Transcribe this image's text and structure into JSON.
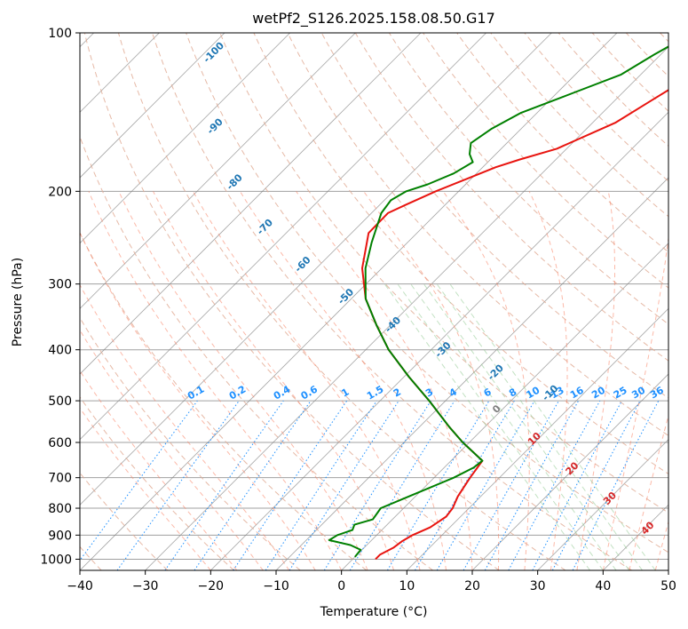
{
  "chart_data": {
    "type": "line",
    "subtype": "skew-t log-p",
    "title": "wetPf2_S126.2025.158.08.50.G17",
    "xlabel": "Temperature (°C)",
    "ylabel": "Pressure (hPa)",
    "xlim": [
      -40,
      50
    ],
    "ylim": [
      1050,
      100
    ],
    "y_scale": "log",
    "x_ticks": [
      "−40",
      "−30",
      "−20",
      "−10",
      "0",
      "10",
      "20",
      "30",
      "40",
      "50"
    ],
    "y_ticks": [
      "100",
      "200",
      "300",
      "400",
      "500",
      "600",
      "700",
      "800",
      "900",
      "1000"
    ],
    "grid": true,
    "series": [
      {
        "color": "#e8140f",
        "points": [
          [
            -19.1,
            100
          ],
          [
            -20.5,
            108
          ],
          [
            -21.5,
            116
          ],
          [
            -22.8,
            125
          ],
          [
            -24.5,
            135
          ],
          [
            -26.5,
            148
          ],
          [
            -31.5,
            166
          ],
          [
            -35.5,
            174
          ],
          [
            -38.0,
            180
          ],
          [
            -40.8,
            190
          ],
          [
            -43.5,
            200
          ],
          [
            -46.0,
            212
          ],
          [
            -47.5,
            220
          ],
          [
            -47.4,
            240
          ],
          [
            -43.0,
            280
          ],
          [
            -37.8,
            320
          ],
          [
            -32.0,
            360
          ],
          [
            -26.5,
            400
          ],
          [
            -19.3,
            450
          ],
          [
            -12.5,
            500
          ],
          [
            -5.5,
            560
          ],
          [
            -1.0,
            600
          ],
          [
            4.8,
            650
          ],
          [
            5.5,
            700
          ],
          [
            6.5,
            760
          ],
          [
            7.5,
            800
          ],
          [
            7.8,
            830
          ],
          [
            7.0,
            870
          ],
          [
            5.5,
            900
          ],
          [
            4.8,
            925
          ],
          [
            4.5,
            950
          ],
          [
            3.5,
            980
          ],
          [
            3.5,
            1000
          ]
        ]
      },
      {
        "color": "#008000",
        "points": [
          [
            -28.4,
            100
          ],
          [
            -31.0,
            110
          ],
          [
            -33.0,
            120
          ],
          [
            -37.5,
            130
          ],
          [
            -42.5,
            142
          ],
          [
            -44.5,
            152
          ],
          [
            -45.5,
            162
          ],
          [
            -44.0,
            170
          ],
          [
            -42.3,
            176
          ],
          [
            -43.5,
            185
          ],
          [
            -45.8,
            194
          ],
          [
            -48.0,
            200
          ],
          [
            -49.0,
            208
          ],
          [
            -48.5,
            220
          ],
          [
            -45.5,
            250
          ],
          [
            -42.5,
            280
          ],
          [
            -37.8,
            320
          ],
          [
            -32.0,
            360
          ],
          [
            -26.5,
            400
          ],
          [
            -19.3,
            450
          ],
          [
            -12.5,
            500
          ],
          [
            -5.5,
            560
          ],
          [
            -1.0,
            600
          ],
          [
            4.8,
            650
          ],
          [
            4.5,
            670
          ],
          [
            3.0,
            700
          ],
          [
            -1.0,
            760
          ],
          [
            -3.5,
            800
          ],
          [
            -3.0,
            840
          ],
          [
            -5.0,
            860
          ],
          [
            -4.5,
            880
          ],
          [
            -6.0,
            900
          ],
          [
            -6.5,
            920
          ],
          [
            -2.5,
            940
          ],
          [
            -0.2,
            960
          ],
          [
            0.0,
            990
          ]
        ]
      }
    ],
    "mixing_ratio_labels": [
      "0.1",
      "0.2",
      "0.4",
      "0.6",
      "1",
      "1.5",
      "2",
      "3",
      "4",
      "6",
      "8",
      "10",
      "13",
      "16",
      "20",
      "25",
      "30",
      "36"
    ],
    "dry_adiabat_labels": [
      "-100",
      "-90",
      "-80",
      "-70",
      "-60",
      "-50",
      "-40",
      "-30",
      "-20",
      "-10"
    ],
    "moist_adiabat_labels": [
      "0",
      "10",
      "20",
      "30",
      "40"
    ],
    "colors": {
      "temperature": "#e8140f",
      "dewpoint": "#008000",
      "dry_adiabat": "#e0a890",
      "moist_adiabat": "#fa8060",
      "mixing_ratio": "#1e90ff",
      "isotherm": "#808080",
      "isobar": "#a0a0a0",
      "green_dash": "#90c890"
    }
  }
}
